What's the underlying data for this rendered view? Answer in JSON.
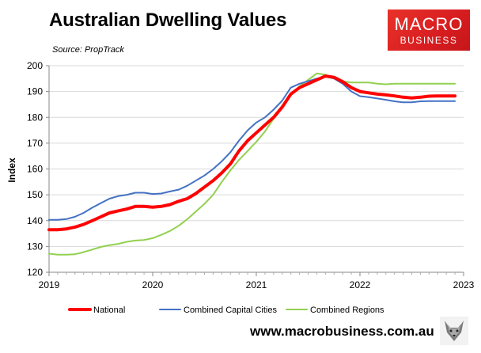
{
  "header": {
    "title": "Australian Dwelling Values",
    "source": "Source: PropTrack"
  },
  "logo": {
    "top": "MACRO",
    "bottom": "BUSINESS",
    "color": "#e0241f"
  },
  "footer": {
    "url": "www.macrobusiness.com.au",
    "icon": "wolf-icon"
  },
  "chart_data": {
    "type": "line",
    "title": "Australian Dwelling Values",
    "xlabel": "",
    "ylabel": "Index",
    "xlim": [
      2019,
      2023
    ],
    "ylim": [
      120,
      200
    ],
    "yticks": [
      120,
      130,
      140,
      150,
      160,
      170,
      180,
      190,
      200
    ],
    "xticks": [
      "2019",
      "2020",
      "2021",
      "2022",
      "2023"
    ],
    "grid": "horizontal",
    "legend_position": "bottom",
    "series": [
      {
        "name": "National",
        "color": "#ff0000",
        "width": 4,
        "x": [
          2019.0,
          2019.083,
          2019.167,
          2019.25,
          2019.333,
          2019.417,
          2019.5,
          2019.583,
          2019.667,
          2019.75,
          2019.833,
          2019.917,
          2020.0,
          2020.083,
          2020.167,
          2020.25,
          2020.333,
          2020.417,
          2020.5,
          2020.583,
          2020.667,
          2020.75,
          2020.833,
          2020.917,
          2021.0,
          2021.083,
          2021.167,
          2021.25,
          2021.333,
          2021.417,
          2021.5,
          2021.583,
          2021.667,
          2021.75,
          2021.833,
          2021.917,
          2022.0,
          2022.083,
          2022.167,
          2022.25,
          2022.333,
          2022.417,
          2022.5,
          2022.583,
          2022.667,
          2022.75,
          2022.833,
          2022.917
        ],
        "values": [
          136.5,
          136.5,
          136.8,
          137.5,
          138.5,
          140.0,
          141.5,
          143.0,
          143.8,
          144.5,
          145.5,
          145.5,
          145.2,
          145.5,
          146.2,
          147.5,
          148.5,
          150.5,
          153.0,
          155.5,
          158.5,
          162.0,
          167.0,
          171.0,
          174.0,
          177.0,
          180.0,
          184.0,
          189.0,
          191.5,
          193.0,
          194.5,
          196.0,
          195.5,
          193.8,
          191.5,
          190.0,
          189.5,
          189.0,
          188.7,
          188.3,
          187.8,
          187.5,
          187.8,
          188.2,
          188.3,
          188.3,
          188.3
        ]
      },
      {
        "name": "Combined Capital Cities",
        "color": "#4472c4",
        "width": 2,
        "x": [
          2019.0,
          2019.083,
          2019.167,
          2019.25,
          2019.333,
          2019.417,
          2019.5,
          2019.583,
          2019.667,
          2019.75,
          2019.833,
          2019.917,
          2020.0,
          2020.083,
          2020.167,
          2020.25,
          2020.333,
          2020.417,
          2020.5,
          2020.583,
          2020.667,
          2020.75,
          2020.833,
          2020.917,
          2021.0,
          2021.083,
          2021.167,
          2021.25,
          2021.333,
          2021.417,
          2021.5,
          2021.583,
          2021.667,
          2021.75,
          2021.833,
          2021.917,
          2022.0,
          2022.083,
          2022.167,
          2022.25,
          2022.333,
          2022.417,
          2022.5,
          2022.583,
          2022.667,
          2022.75,
          2022.833,
          2022.917
        ],
        "values": [
          140.3,
          140.3,
          140.6,
          141.5,
          143.0,
          145.0,
          146.8,
          148.5,
          149.5,
          150.0,
          150.8,
          150.8,
          150.3,
          150.5,
          151.3,
          152.0,
          153.5,
          155.5,
          157.5,
          160.0,
          163.0,
          166.5,
          171.0,
          175.0,
          178.0,
          180.0,
          183.0,
          186.5,
          191.5,
          193.0,
          194.0,
          195.0,
          195.8,
          195.0,
          193.0,
          190.0,
          188.2,
          187.8,
          187.3,
          186.8,
          186.2,
          185.8,
          185.8,
          186.2,
          186.3,
          186.3,
          186.3,
          186.3
        ]
      },
      {
        "name": "Combined Regions",
        "color": "#92d050",
        "width": 2,
        "x": [
          2019.0,
          2019.083,
          2019.167,
          2019.25,
          2019.333,
          2019.417,
          2019.5,
          2019.583,
          2019.667,
          2019.75,
          2019.833,
          2019.917,
          2020.0,
          2020.083,
          2020.167,
          2020.25,
          2020.333,
          2020.417,
          2020.5,
          2020.583,
          2020.667,
          2020.75,
          2020.833,
          2020.917,
          2021.0,
          2021.083,
          2021.167,
          2021.25,
          2021.333,
          2021.417,
          2021.5,
          2021.583,
          2021.667,
          2021.75,
          2021.833,
          2021.917,
          2022.0,
          2022.083,
          2022.167,
          2022.25,
          2022.333,
          2022.417,
          2022.5,
          2022.583,
          2022.667,
          2022.75,
          2022.833,
          2022.917
        ],
        "values": [
          127.2,
          126.8,
          126.8,
          127.0,
          127.8,
          128.8,
          129.8,
          130.5,
          131.0,
          131.8,
          132.3,
          132.5,
          133.2,
          134.5,
          136.0,
          138.0,
          140.5,
          143.5,
          146.5,
          150.0,
          155.0,
          159.5,
          163.5,
          167.0,
          170.5,
          174.5,
          179.5,
          184.5,
          188.5,
          192.0,
          194.5,
          197.0,
          196.5,
          195.3,
          194.0,
          193.5,
          193.5,
          193.5,
          193.0,
          192.8,
          193.0,
          193.0,
          193.0,
          193.0,
          193.0,
          193.0,
          193.0,
          193.0
        ]
      }
    ]
  }
}
